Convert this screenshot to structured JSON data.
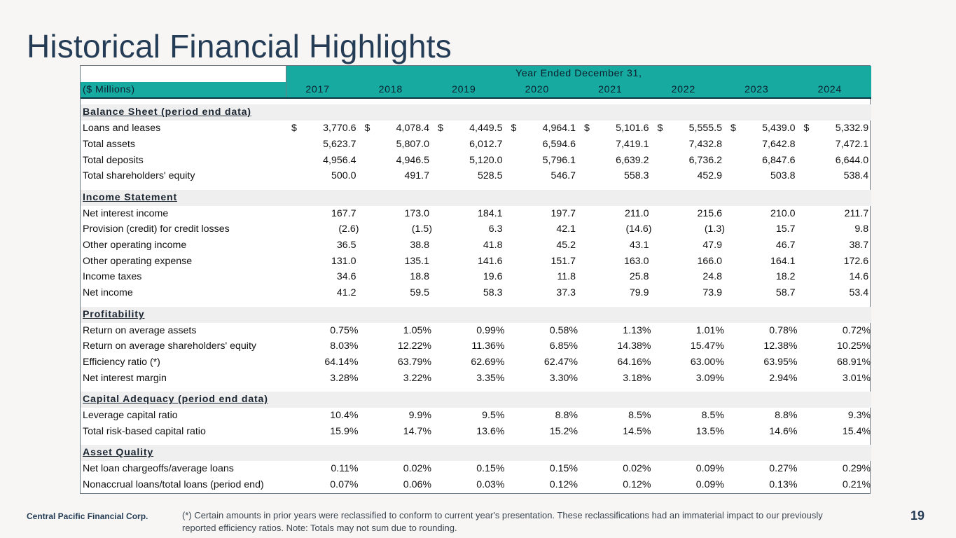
{
  "title": "Historical Financial Highlights",
  "header": {
    "span_label": "Year Ended December 31,",
    "units_label": "($ Millions)",
    "years": [
      "2017",
      "2018",
      "2019",
      "2020",
      "2021",
      "2022",
      "2023",
      "2024"
    ]
  },
  "sections": [
    {
      "title": "Balance Sheet (period end data)",
      "rows": [
        {
          "label": "Loans and leases",
          "dollar": true,
          "values": [
            "3,770.6",
            "4,078.4",
            "4,449.5",
            "4,964.1",
            "5,101.6",
            "5,555.5",
            "5,439.0",
            "5,332.9"
          ]
        },
        {
          "label": "Total assets",
          "values": [
            "5,623.7",
            "5,807.0",
            "6,012.7",
            "6,594.6",
            "7,419.1",
            "7,432.8",
            "7,642.8",
            "7,472.1"
          ]
        },
        {
          "label": "Total deposits",
          "values": [
            "4,956.4",
            "4,946.5",
            "5,120.0",
            "5,796.1",
            "6,639.2",
            "6,736.2",
            "6,847.6",
            "6,644.0"
          ]
        },
        {
          "label": "Total shareholders' equity",
          "values": [
            "500.0",
            "491.7",
            "528.5",
            "546.7",
            "558.3",
            "452.9",
            "503.8",
            "538.4"
          ]
        }
      ]
    },
    {
      "title": "Income Statement",
      "rows": [
        {
          "label": "Net interest income",
          "values": [
            "167.7",
            "173.0",
            "184.1",
            "197.7",
            "211.0",
            "215.6",
            "210.0",
            "211.7"
          ]
        },
        {
          "label": "Provision (credit) for credit losses",
          "values": [
            "(2.6)",
            "(1.5)",
            "6.3",
            "42.1",
            "(14.6)",
            "(1.3)",
            "15.7",
            "9.8"
          ]
        },
        {
          "label": "Other operating income",
          "values": [
            "36.5",
            "38.8",
            "41.8",
            "45.2",
            "43.1",
            "47.9",
            "46.7",
            "38.7"
          ]
        },
        {
          "label": "Other operating expense",
          "values": [
            "131.0",
            "135.1",
            "141.6",
            "151.7",
            "163.0",
            "166.0",
            "164.1",
            "172.6"
          ]
        },
        {
          "label": "Income taxes",
          "values": [
            "34.6",
            "18.8",
            "19.6",
            "11.8",
            "25.8",
            "24.8",
            "18.2",
            "14.6"
          ]
        },
        {
          "label": "Net income",
          "values": [
            "41.2",
            "59.5",
            "58.3",
            "37.3",
            "79.9",
            "73.9",
            "58.7",
            "53.4"
          ]
        }
      ]
    },
    {
      "title": "Profitability",
      "rows": [
        {
          "label": "Return on average assets",
          "values": [
            "0.75%",
            "1.05%",
            "0.99%",
            "0.58%",
            "1.13%",
            "1.01%",
            "0.78%",
            "0.72%"
          ]
        },
        {
          "label": "Return on average shareholders' equity",
          "values": [
            "8.03%",
            "12.22%",
            "11.36%",
            "6.85%",
            "14.38%",
            "15.47%",
            "12.38%",
            "10.25%"
          ]
        },
        {
          "label": "Efficiency ratio (*)",
          "values": [
            "64.14%",
            "63.79%",
            "62.69%",
            "62.47%",
            "64.16%",
            "63.00%",
            "63.95%",
            "68.91%"
          ]
        },
        {
          "label": "Net interest margin",
          "values": [
            "3.28%",
            "3.22%",
            "3.35%",
            "3.30%",
            "3.18%",
            "3.09%",
            "2.94%",
            "3.01%"
          ]
        }
      ]
    },
    {
      "title": "Capital Adequacy (period end data)",
      "rows": [
        {
          "label": "Leverage capital ratio",
          "values": [
            "10.4%",
            "9.9%",
            "9.5%",
            "8.8%",
            "8.5%",
            "8.5%",
            "8.8%",
            "9.3%"
          ]
        },
        {
          "label": "Total risk-based capital ratio",
          "values": [
            "15.9%",
            "14.7%",
            "13.6%",
            "15.2%",
            "14.5%",
            "13.5%",
            "14.6%",
            "15.4%"
          ]
        }
      ]
    },
    {
      "title": "Asset Quality",
      "rows": [
        {
          "label": "Net loan chargeoffs/average loans",
          "values": [
            "0.11%",
            "0.02%",
            "0.15%",
            "0.15%",
            "0.02%",
            "0.09%",
            "0.27%",
            "0.29%"
          ]
        },
        {
          "label": "Nonaccrual loans/total loans (period end)",
          "values": [
            "0.07%",
            "0.06%",
            "0.03%",
            "0.12%",
            "0.12%",
            "0.09%",
            "0.13%",
            "0.21%"
          ]
        }
      ]
    }
  ],
  "footer": {
    "company": "Central Pacific Financial Corp.",
    "note": "(*) Certain amounts in prior years were reclassified to conform to current year's presentation. These reclassifications had an immaterial impact to our previously reported efficiency ratios. Note: Totals may not sum due to rounding.",
    "page_number": "19"
  }
}
